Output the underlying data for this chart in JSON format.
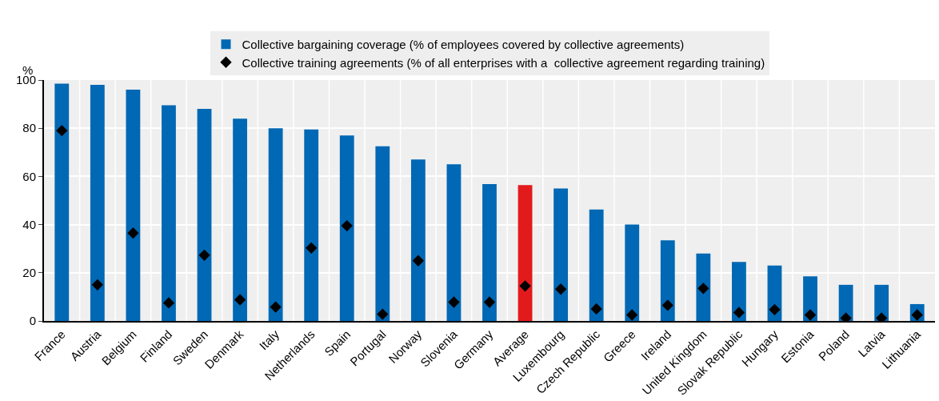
{
  "chart_data": {
    "type": "bar",
    "ylabel": "%",
    "categories": [
      "France",
      "Austria",
      "Belgium",
      "Finland",
      "Sweden",
      "Denmark",
      "Italy",
      "Netherlands",
      "Spain",
      "Portugal",
      "Norway",
      "Slovenia",
      "Germany",
      "Average",
      "Luxembourg",
      "Czech Republic",
      "Greece",
      "Ireland",
      "United Kingdom",
      "Slovak Republic",
      "Hungary",
      "Estonia",
      "Poland",
      "Latvia",
      "Lithuania"
    ],
    "series": [
      {
        "name": "Collective bargaining coverage (% of employees covered by collective agreements)",
        "color": "#0068b4",
        "colors": [
          "#0068b4",
          "#0068b4",
          "#0068b4",
          "#0068b4",
          "#0068b4",
          "#0068b4",
          "#0068b4",
          "#0068b4",
          "#0068b4",
          "#0068b4",
          "#0068b4",
          "#0068b4",
          "#0068b4",
          "#e31a1c",
          "#0068b4",
          "#0068b4",
          "#0068b4",
          "#0068b4",
          "#0068b4",
          "#0068b4",
          "#0068b4",
          "#0068b4",
          "#0068b4",
          "#0068b4",
          "#0068b4"
        ],
        "values": [
          98.5,
          98,
          96,
          89.5,
          88,
          84,
          80,
          79.5,
          77,
          72.5,
          67,
          65,
          56.8,
          56.4,
          55,
          46.3,
          40,
          33.5,
          28,
          24.5,
          23,
          18.5,
          15,
          15,
          7
        ]
      },
      {
        "name": "Collective training agreements (% of all enterprises with a  collective agreement regarding training)",
        "type": "scatter",
        "marker": "diamond",
        "color": "#000000",
        "values": [
          79,
          15,
          36.5,
          7.5,
          27.3,
          8.8,
          5.8,
          30.3,
          39.5,
          2.8,
          25,
          7.8,
          7.8,
          14.5,
          13.2,
          5,
          2.5,
          6.5,
          13.5,
          3.5,
          4.7,
          2.5,
          1.2,
          1.2,
          2.5
        ]
      }
    ],
    "ylim": [
      0,
      100
    ],
    "yticks": [
      0,
      20,
      40,
      60,
      80,
      100
    ],
    "grid": true,
    "legend": "top"
  }
}
